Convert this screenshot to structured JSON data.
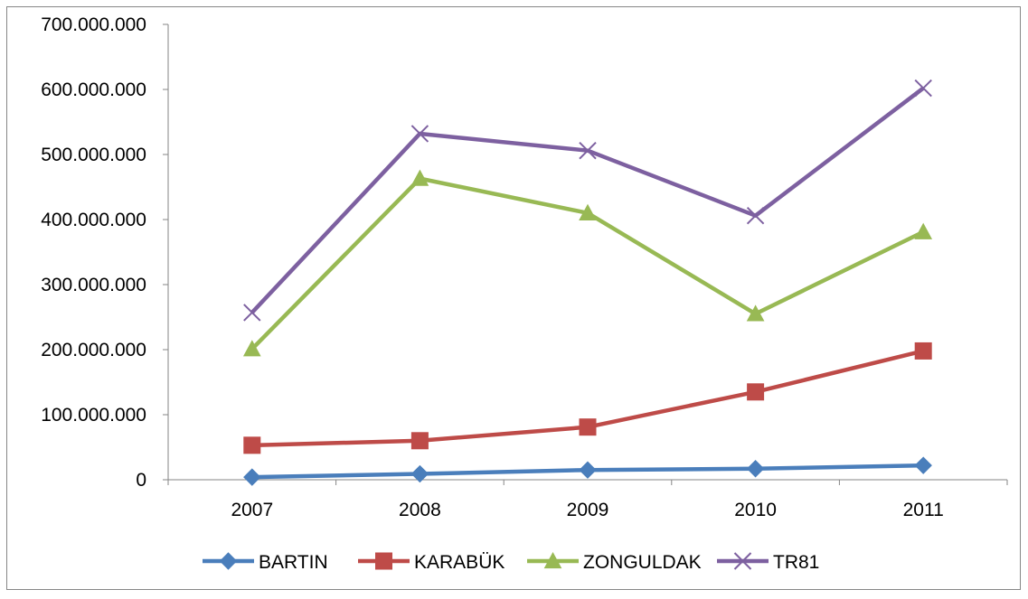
{
  "chart_data": {
    "type": "line",
    "title": "",
    "xlabel": "",
    "ylabel": "",
    "categories": [
      "2007",
      "2008",
      "2009",
      "2010",
      "2011"
    ],
    "ylim": [
      0,
      700000000
    ],
    "yticks": [
      0,
      100000000,
      200000000,
      300000000,
      400000000,
      500000000,
      600000000,
      700000000
    ],
    "ytick_labels": [
      "0",
      "100.000.000",
      "200.000.000",
      "300.000.000",
      "400.000.000",
      "500.000.000",
      "600.000.000",
      "700.000.000"
    ],
    "grid": false,
    "legend_position": "bottom",
    "series": [
      {
        "name": "BARTIN",
        "color": "#4A7EBB",
        "marker": "diamond",
        "values": [
          4000000,
          9000000,
          15000000,
          17000000,
          22000000
        ]
      },
      {
        "name": "KARABÜK",
        "color": "#BE4B48",
        "marker": "square",
        "values": [
          53000000,
          60000000,
          81000000,
          135000000,
          198000000
        ]
      },
      {
        "name": "ZONGULDAK",
        "color": "#98B954",
        "marker": "triangle",
        "values": [
          201000000,
          463000000,
          410000000,
          255000000,
          381000000
        ]
      },
      {
        "name": "TR81",
        "color": "#7D60A0",
        "marker": "x",
        "values": [
          257000000,
          532000000,
          506000000,
          406000000,
          602000000
        ]
      }
    ]
  }
}
